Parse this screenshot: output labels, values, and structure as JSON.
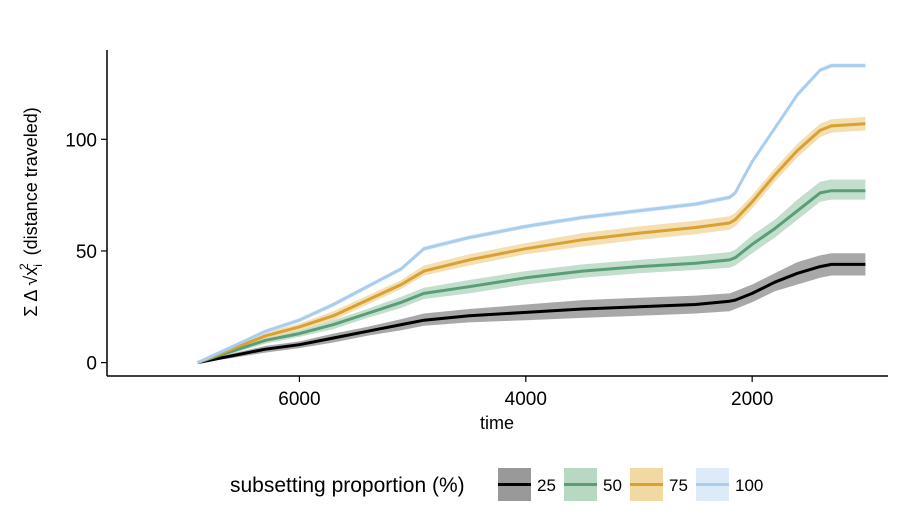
{
  "chart_data": {
    "type": "line",
    "title": "",
    "xlabel": "time",
    "ylabel": "(distance traveled)",
    "ylabel_prefix": "Σ Δ √x",
    "ylabel_sup": "2",
    "ylabel_sub": "i",
    "x_reversed": true,
    "xlim": [
      7700,
      800
    ],
    "ylim": [
      -6,
      140
    ],
    "x_ticks": [
      6000,
      4000,
      2000
    ],
    "x_tick_labels": [
      "6000",
      "4000",
      "2000"
    ],
    "y_ticks": [
      0,
      50,
      100
    ],
    "y_tick_labels": [
      "0",
      "50",
      "100"
    ],
    "grid": false,
    "x": [
      6900,
      6600,
      6300,
      6000,
      5700,
      5400,
      5100,
      4900,
      4500,
      4000,
      3500,
      3000,
      2500,
      2200,
      2150,
      2000,
      1800,
      1600,
      1400,
      1300,
      1000
    ],
    "series": [
      {
        "name": "25",
        "color": "#000000",
        "band_color": "#999999",
        "values": [
          0,
          3,
          6,
          8,
          11,
          14,
          17,
          19,
          21,
          22.5,
          24,
          25,
          26,
          27.5,
          28,
          31,
          36,
          40,
          43,
          44,
          44
        ],
        "lower": [
          0,
          2,
          4.5,
          6.5,
          9,
          12,
          14.5,
          16.5,
          18,
          19,
          20,
          21,
          22,
          23,
          24,
          27,
          32,
          35,
          38,
          39,
          39
        ],
        "upper": [
          0,
          4,
          7.5,
          9.5,
          13,
          16,
          19.5,
          22,
          24,
          26,
          28,
          29,
          30,
          31,
          32,
          35,
          40,
          45,
          48,
          49,
          49
        ]
      },
      {
        "name": "50",
        "color": "#5a9e78",
        "band_color": "#b8d8c4",
        "values": [
          0,
          5,
          10,
          13,
          17,
          22,
          27,
          31,
          34,
          38,
          41,
          43,
          44.5,
          46,
          47,
          53,
          60,
          68,
          76,
          77,
          77
        ],
        "lower": [
          0,
          4,
          8.5,
          11.5,
          15,
          20,
          24.5,
          28.5,
          31,
          35,
          38,
          40,
          41.5,
          42.5,
          43.5,
          49,
          56,
          64,
          72,
          73,
          73
        ],
        "upper": [
          0,
          6,
          11.5,
          14.5,
          19,
          24,
          29.5,
          33.5,
          37,
          41,
          44,
          46,
          48,
          49.5,
          50.5,
          57,
          64,
          73,
          81,
          82,
          82
        ]
      },
      {
        "name": "75",
        "color": "#d9a032",
        "band_color": "#f1d9a3",
        "values": [
          0,
          6,
          12,
          16,
          21,
          28,
          35,
          41,
          46,
          51,
          55,
          58,
          60.5,
          62.5,
          64,
          72,
          84,
          95,
          104,
          106,
          107
        ],
        "lower": [
          0,
          5,
          10.5,
          14.5,
          19,
          26,
          33,
          39,
          43.5,
          48.5,
          52,
          55,
          57.5,
          59.5,
          61,
          69,
          81,
          92,
          101,
          103,
          104
        ],
        "upper": [
          0,
          7,
          13.5,
          17.5,
          23,
          30,
          37,
          43.5,
          48.5,
          53.5,
          58,
          61,
          63.5,
          65.5,
          67,
          75,
          87,
          98,
          107,
          109,
          110
        ]
      },
      {
        "name": "100",
        "color": "#a9cdee",
        "band_color": "#ddeaf8",
        "values": [
          0,
          7,
          14,
          19,
          26,
          34,
          42,
          51,
          56,
          61,
          65,
          68,
          71,
          74,
          76,
          90,
          105,
          120,
          131,
          133,
          133
        ],
        "lower": [
          0,
          6.5,
          13,
          18,
          25,
          33,
          41,
          50,
          55,
          60,
          64,
          67,
          70,
          73,
          75,
          89,
          104,
          119,
          130,
          132,
          132
        ],
        "upper": [
          0,
          7.5,
          15,
          20,
          27,
          35,
          43,
          52,
          57,
          62,
          66,
          69,
          72,
          75,
          77,
          91,
          106,
          121,
          132,
          134,
          134
        ]
      }
    ],
    "legend": {
      "title": "subsetting proportion (%)",
      "placement": "bottom",
      "entries": [
        "25",
        "50",
        "75",
        "100"
      ]
    }
  }
}
